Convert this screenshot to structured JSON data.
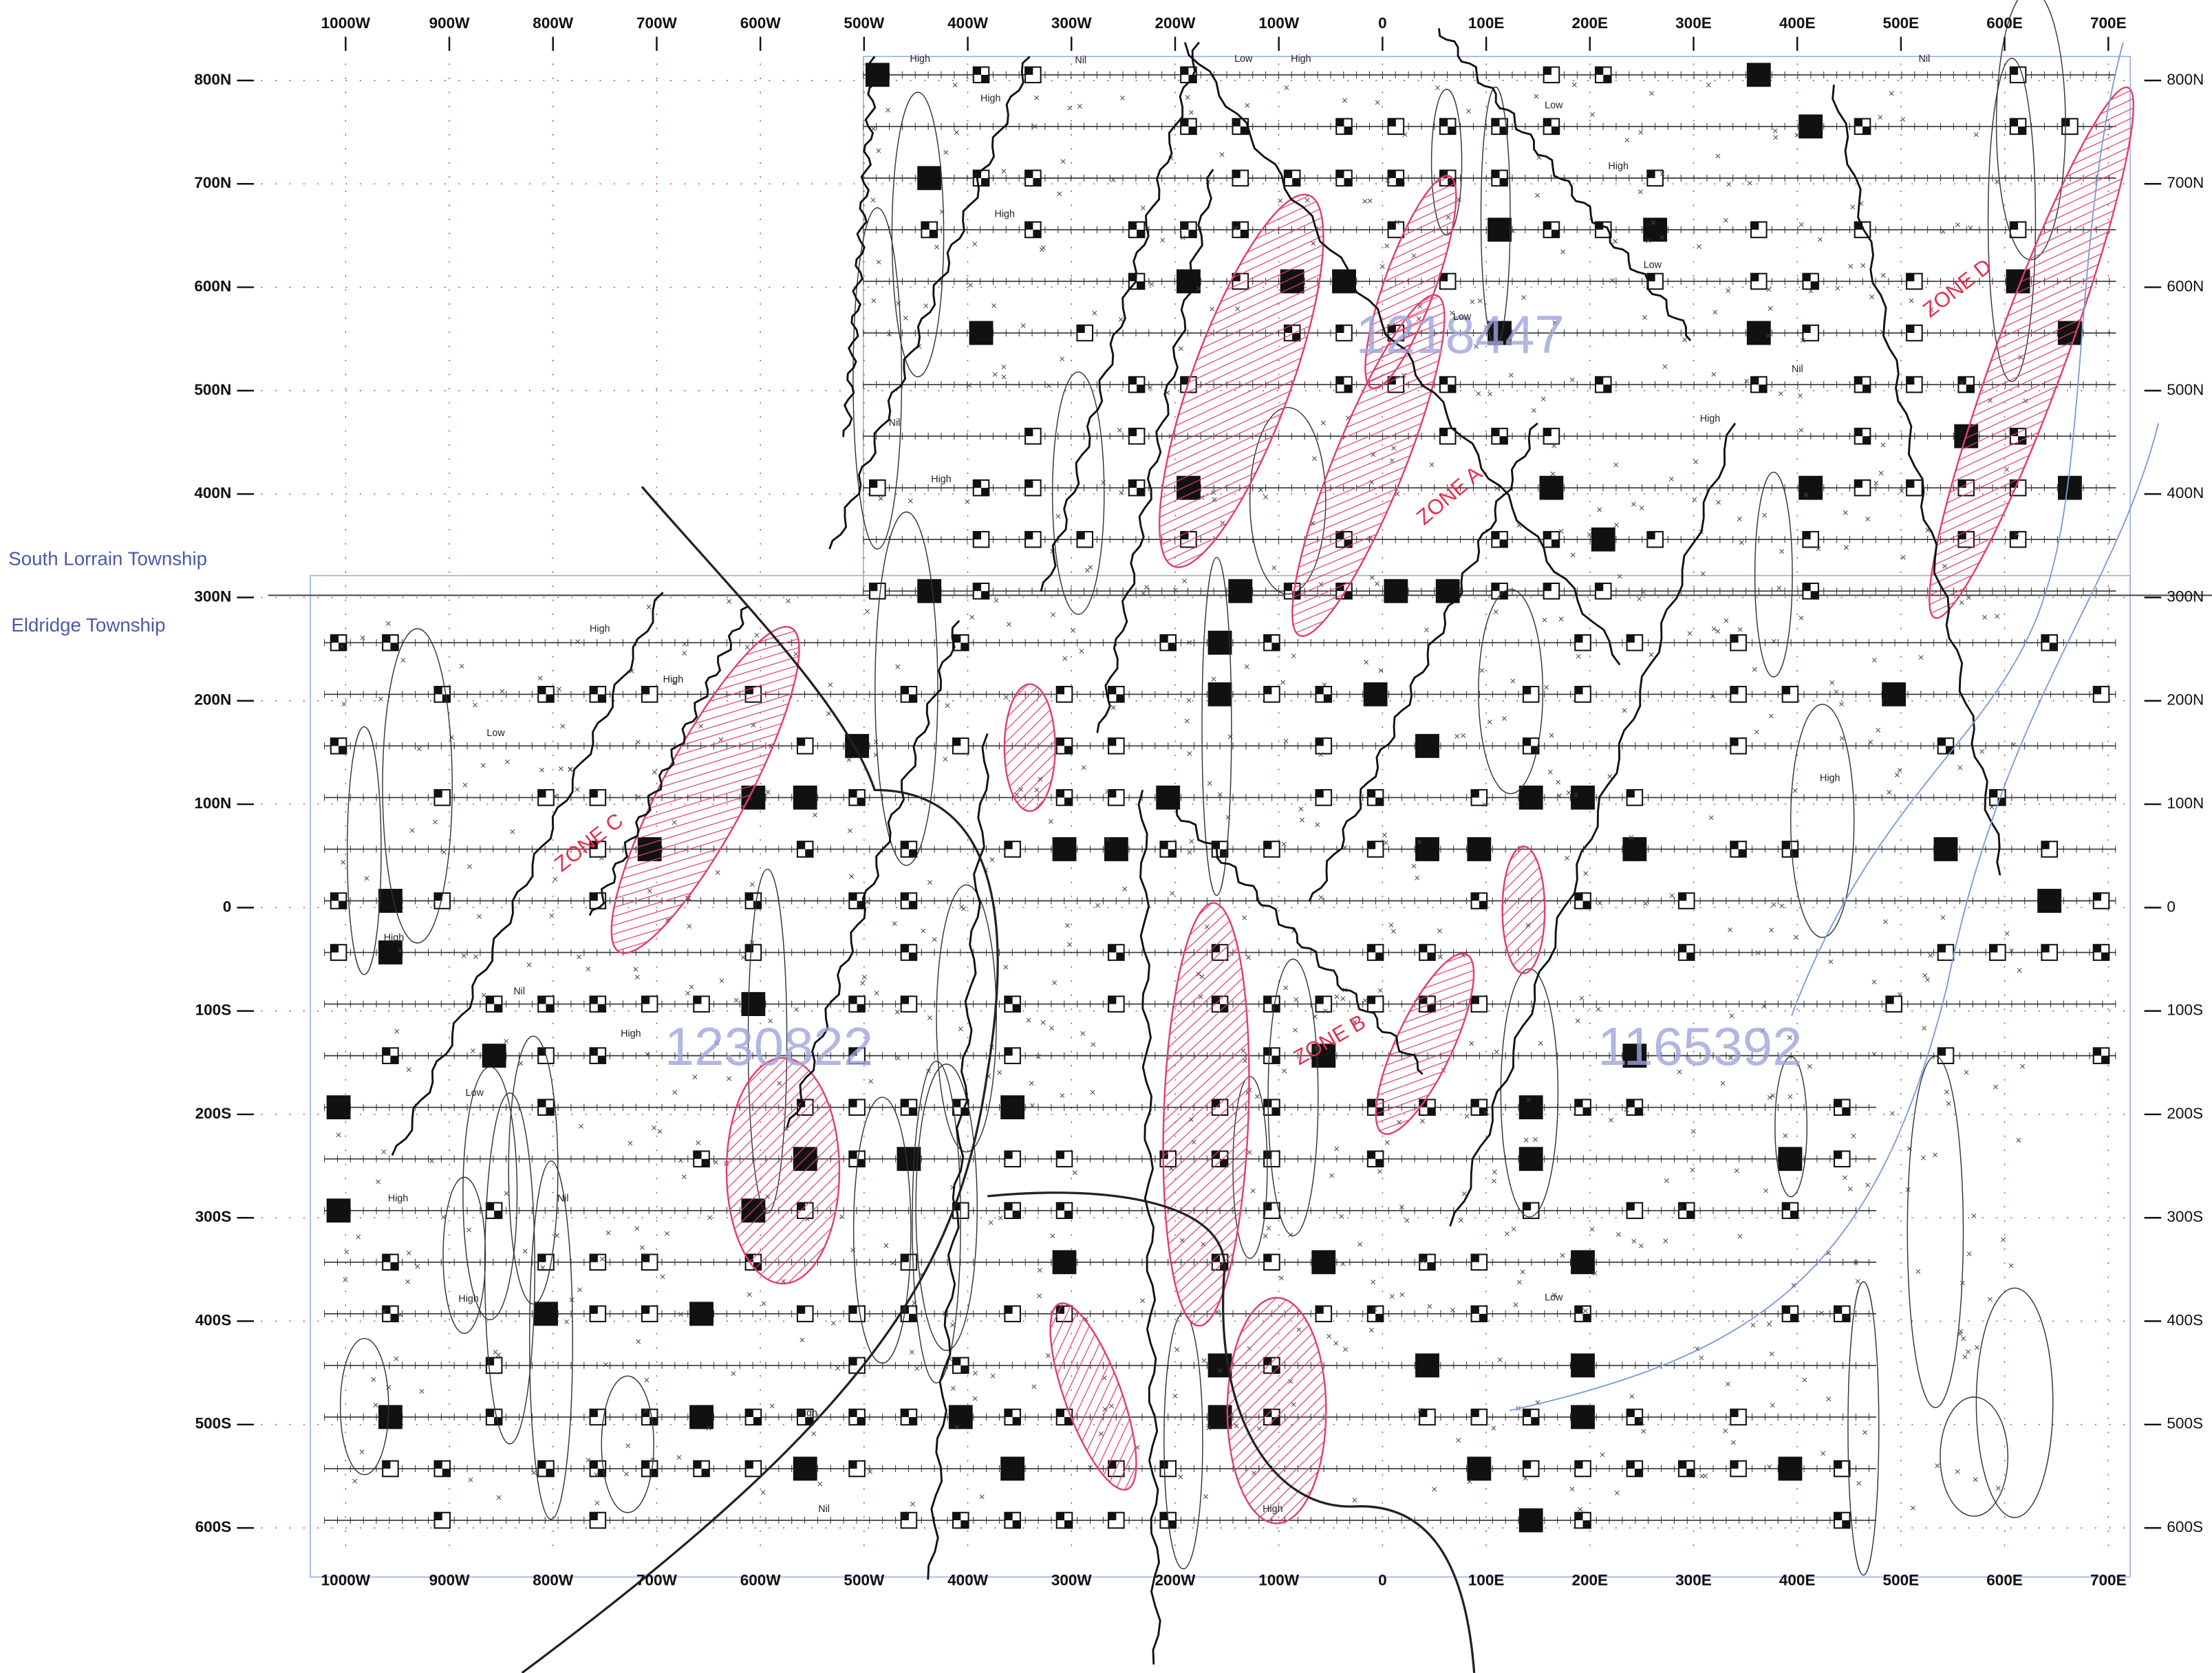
{
  "townships": {
    "north": "South Lorrain Township",
    "south": "Eldridge Township"
  },
  "grid": {
    "x_labels": [
      "1000W",
      "900W",
      "800W",
      "700W",
      "600W",
      "500W",
      "400W",
      "300W",
      "200W",
      "100W",
      "0",
      "100E",
      "200E",
      "300E",
      "400E",
      "500E",
      "600E",
      "700E"
    ],
    "y_labels": [
      "800N",
      "700N",
      "600N",
      "500N",
      "400N",
      "300N",
      "200N",
      "100N",
      "0",
      "100S",
      "200S",
      "300S",
      "400S",
      "500S",
      "600S"
    ]
  },
  "claims": [
    "1218447",
    "1230822",
    "1165392"
  ],
  "zones": [
    "ZONE A",
    "ZONE B",
    "ZONE C",
    "ZONE D"
  ],
  "anomaly_labels": [
    "High",
    "Low",
    "Nil",
    "High",
    "Low",
    "High",
    "Nil",
    "High",
    "High",
    "Low",
    "Nil",
    "High",
    "Low",
    "High",
    "Nil",
    "High",
    "High",
    "Low",
    "High",
    "Nil",
    "High",
    "Low",
    "High",
    "Nil",
    "High",
    "High",
    "Low",
    "Nil",
    "High",
    "High"
  ]
}
